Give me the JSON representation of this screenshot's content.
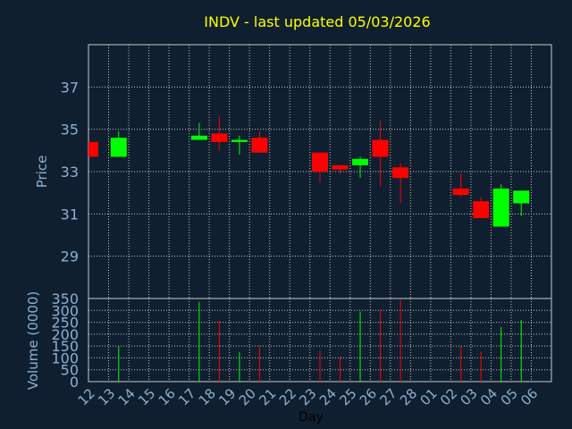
{
  "title": "INDV - last updated 05/03/2026",
  "colors": {
    "background": "#0f1f2f",
    "title": "#ffff00",
    "axis_text": "#8fb0d0",
    "grid": "#c8c8c8",
    "up": "#00ff00",
    "down": "#ff0000"
  },
  "chart_data": [
    {
      "type": "candlestick",
      "ylabel": "Price",
      "ylim": [
        27.0,
        39.0
      ],
      "yticks": [
        "29",
        "31",
        "33",
        "35",
        "37"
      ],
      "grid": true,
      "categories": [
        "12",
        "13",
        "14",
        "15",
        "16",
        "17",
        "18",
        "19",
        "20",
        "21",
        "22",
        "23",
        "24",
        "25",
        "26",
        "27",
        "28",
        "01",
        "02",
        "03",
        "04",
        "05",
        "06"
      ],
      "candles": [
        {
          "x": "12",
          "open": 34.4,
          "high": 34.4,
          "low": 33.7,
          "close": 33.7
        },
        {
          "x": "13",
          "open": 33.7,
          "high": 34.9,
          "low": 33.7,
          "close": 34.6
        },
        {
          "x": "17",
          "open": 34.5,
          "high": 35.3,
          "low": 34.5,
          "close": 34.7
        },
        {
          "x": "18",
          "open": 34.8,
          "high": 35.6,
          "low": 34.0,
          "close": 34.4
        },
        {
          "x": "19",
          "open": 34.4,
          "high": 34.7,
          "low": 33.8,
          "close": 34.5
        },
        {
          "x": "20",
          "open": 34.6,
          "high": 34.9,
          "low": 33.9,
          "close": 33.9
        },
        {
          "x": "23",
          "open": 33.9,
          "high": 33.9,
          "low": 32.5,
          "close": 33.0
        },
        {
          "x": "24",
          "open": 33.3,
          "high": 33.3,
          "low": 32.9,
          "close": 33.1
        },
        {
          "x": "25",
          "open": 33.3,
          "high": 33.7,
          "low": 32.7,
          "close": 33.6
        },
        {
          "x": "26",
          "open": 34.5,
          "high": 35.4,
          "low": 32.3,
          "close": 33.7
        },
        {
          "x": "27",
          "open": 33.2,
          "high": 33.4,
          "low": 31.5,
          "close": 32.7
        },
        {
          "x": "02",
          "open": 32.2,
          "high": 32.9,
          "low": 31.8,
          "close": 31.9
        },
        {
          "x": "03",
          "open": 31.6,
          "high": 31.8,
          "low": 30.8,
          "close": 30.8
        },
        {
          "x": "04",
          "open": 30.4,
          "high": 32.4,
          "low": 30.4,
          "close": 32.2
        },
        {
          "x": "05",
          "open": 31.5,
          "high": 32.1,
          "low": 30.9,
          "close": 32.1
        }
      ]
    },
    {
      "type": "bar",
      "xlabel": "Day",
      "ylabel": "Volume (0000)",
      "ylim": [
        0,
        350
      ],
      "yticks": [
        "0",
        "50",
        "100",
        "150",
        "200",
        "250",
        "300",
        "350"
      ],
      "grid": true,
      "bars": [
        {
          "x": "13",
          "value": 150,
          "direction": "up"
        },
        {
          "x": "17",
          "value": 335,
          "direction": "up"
        },
        {
          "x": "18",
          "value": 255,
          "direction": "down"
        },
        {
          "x": "19",
          "value": 125,
          "direction": "up"
        },
        {
          "x": "20",
          "value": 150,
          "direction": "down"
        },
        {
          "x": "23",
          "value": 130,
          "direction": "down"
        },
        {
          "x": "24",
          "value": 105,
          "direction": "down"
        },
        {
          "x": "25",
          "value": 295,
          "direction": "up"
        },
        {
          "x": "26",
          "value": 300,
          "direction": "down"
        },
        {
          "x": "27",
          "value": 345,
          "direction": "down"
        },
        {
          "x": "02",
          "value": 150,
          "direction": "down"
        },
        {
          "x": "03",
          "value": 125,
          "direction": "down"
        },
        {
          "x": "04",
          "value": 230,
          "direction": "up"
        },
        {
          "x": "05",
          "value": 260,
          "direction": "up"
        }
      ]
    }
  ]
}
